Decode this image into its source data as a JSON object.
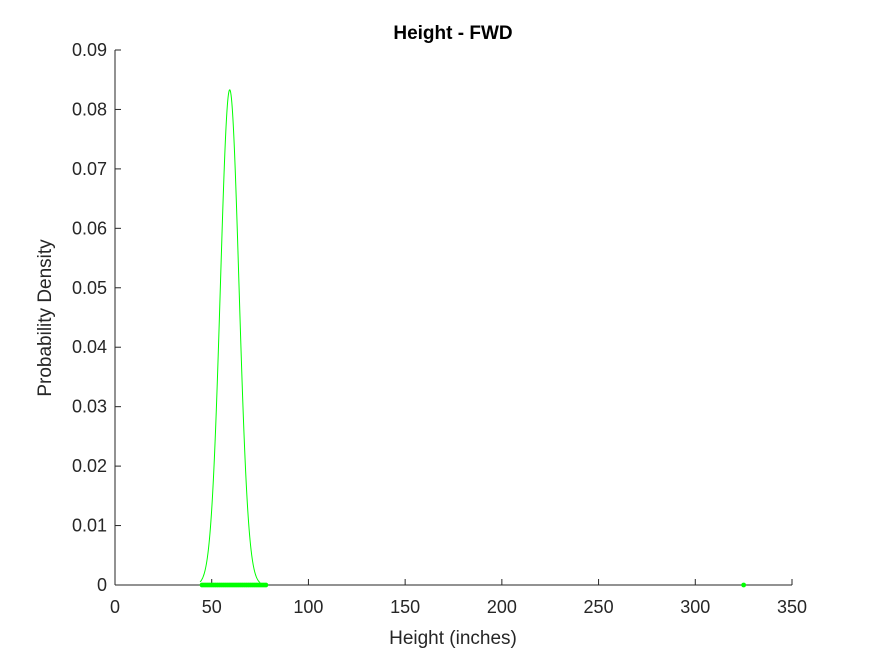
{
  "chart_data": {
    "type": "line",
    "title": "Height - FWD",
    "xlabel": "Height (inches)",
    "ylabel": "Probability Density",
    "xlim": [
      0,
      350
    ],
    "ylim": [
      0,
      0.09
    ],
    "xticks": [
      0,
      50,
      100,
      150,
      200,
      250,
      300,
      350
    ],
    "xtick_labels": [
      "0",
      "50",
      "100",
      "150",
      "200",
      "250",
      "300",
      "350"
    ],
    "yticks": [
      0,
      0.01,
      0.02,
      0.03,
      0.04,
      0.05,
      0.06,
      0.07,
      0.08,
      0.09
    ],
    "ytick_labels": [
      "0",
      "0.01",
      "0.02",
      "0.03",
      "0.04",
      "0.05",
      "0.06",
      "0.07",
      "0.08",
      "0.09"
    ],
    "grid": false,
    "color": "#00ff00",
    "series": [
      {
        "type": "line",
        "distribution": "normal",
        "mean": 59.3,
        "std": 4.8,
        "x_range": [
          44,
          75
        ],
        "peak_density": 0.0833
      },
      {
        "type": "scatter",
        "x": [
          45,
          46,
          47,
          48,
          49,
          50,
          51,
          52,
          53,
          54,
          55,
          56,
          57,
          58,
          59,
          60,
          61,
          62,
          63,
          64,
          65,
          66,
          67,
          68,
          69,
          70,
          71,
          72,
          73,
          74,
          75,
          76,
          77,
          78,
          325
        ],
        "y": [
          0,
          0,
          0,
          0,
          0,
          0,
          0,
          0,
          0,
          0,
          0,
          0,
          0,
          0,
          0,
          0,
          0,
          0,
          0,
          0,
          0,
          0,
          0,
          0,
          0,
          0,
          0,
          0,
          0,
          0,
          0,
          0,
          0,
          0,
          0
        ]
      }
    ]
  }
}
